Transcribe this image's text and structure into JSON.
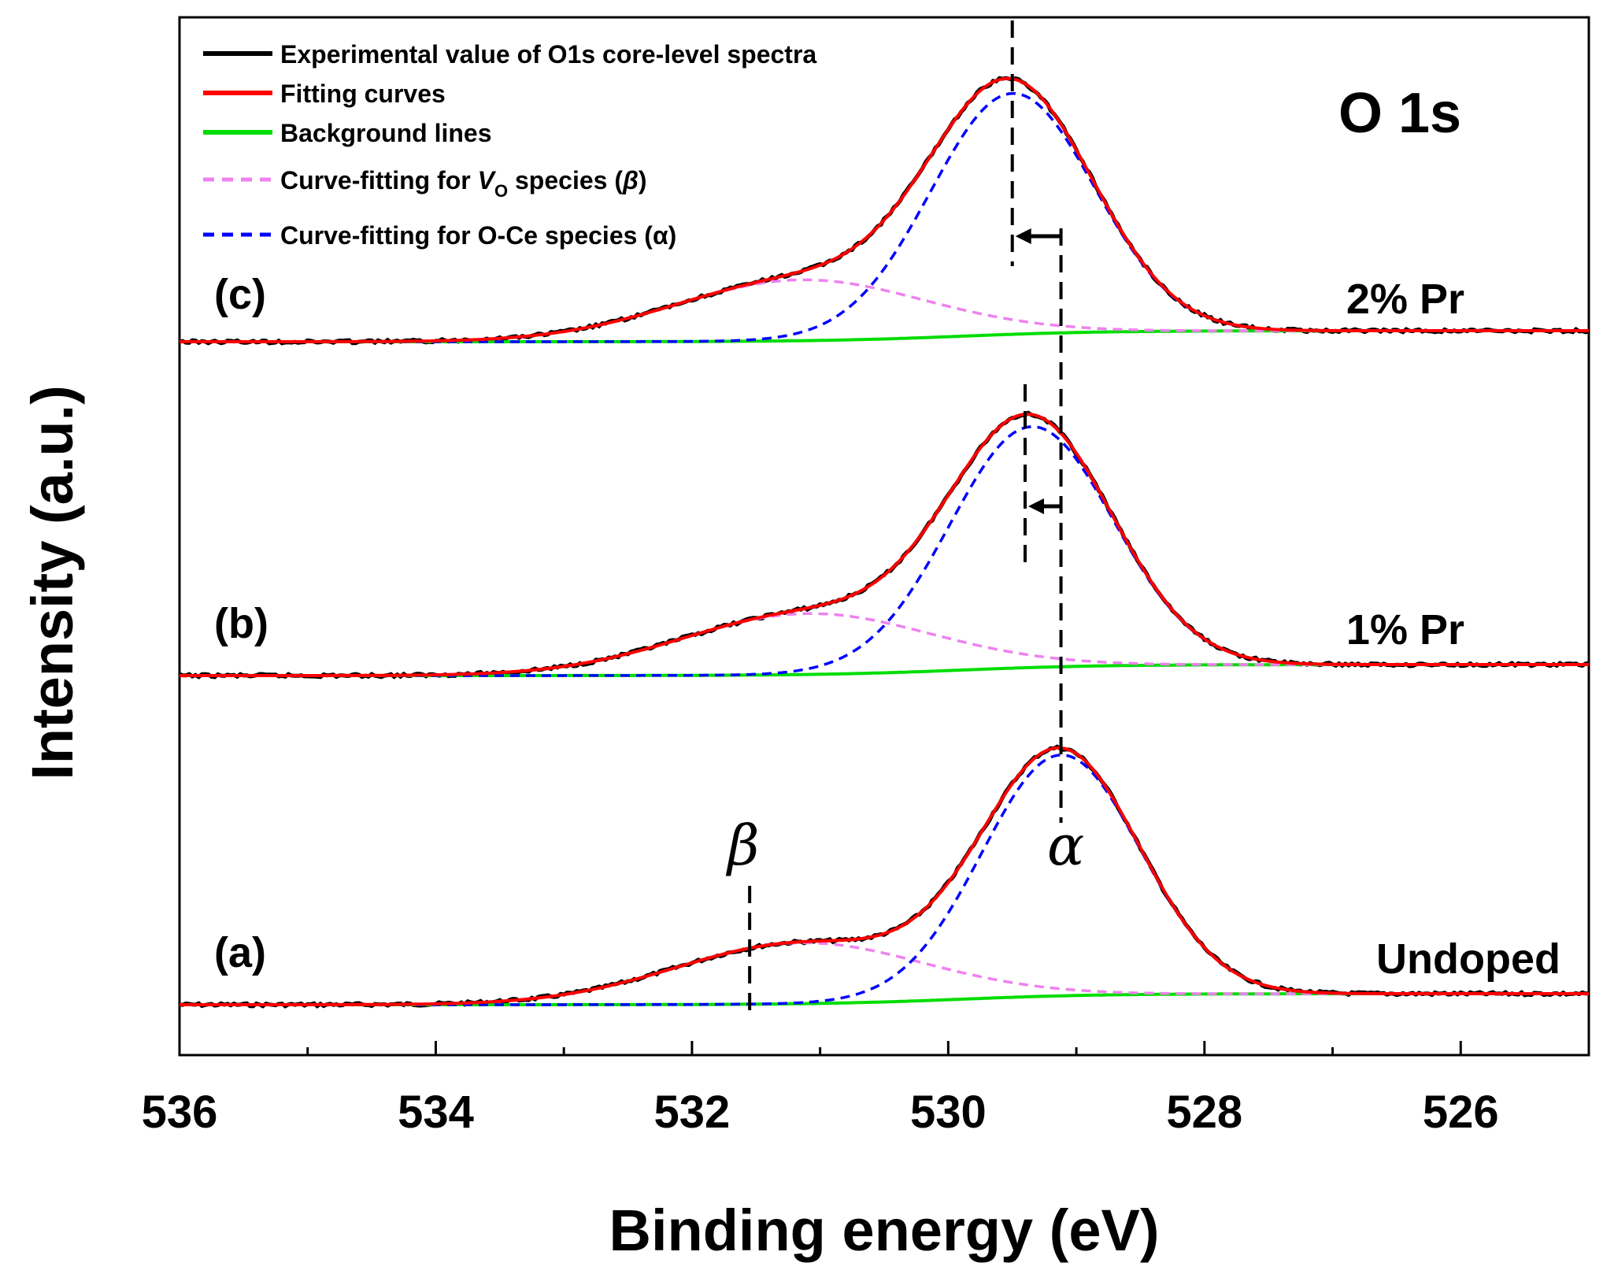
{
  "chart_data": {
    "type": "line",
    "title": "",
    "xlabel": "Binding energy (eV)",
    "ylabel": "Intensity (a.u.)",
    "xlim": [
      536,
      525
    ],
    "xticks": [
      536,
      534,
      532,
      530,
      528,
      526
    ],
    "x_minor_ticks": [
      535,
      533,
      531,
      529,
      527,
      525
    ],
    "core_label": "O 1s",
    "legend": [
      {
        "label": "Experimental value of O1s core-level spectra",
        "color": "#000000",
        "style": "solid"
      },
      {
        "label": "Fitting curves",
        "color": "#ff0000",
        "style": "solid"
      },
      {
        "label": "Background lines",
        "color": "#00dd00",
        "style": "solid"
      },
      {
        "label_prefix": "Curve-fitting for ",
        "label_var": "V",
        "label_sub": "O",
        "label_suffix": " species (",
        "label_greek": "β",
        "label_end": ")",
        "color": "#ee82ee",
        "style": "dashed"
      },
      {
        "label": "Curve-fitting for O-Ce species (α)",
        "color": "#0000ff",
        "style": "dashed"
      }
    ],
    "series": [
      {
        "panel": "(a)",
        "name": "Undoped",
        "alpha_peak_eV": 529.12,
        "alpha_height": 1.0,
        "alpha_fwhm_eV": 1.45,
        "beta_peak_eV": 531.15,
        "beta_height": 0.24,
        "beta_fwhm_eV": 2.3,
        "background_drop": 0.04
      },
      {
        "panel": "(b)",
        "name": "1% Pr",
        "alpha_peak_eV": 529.35,
        "alpha_height": 1.0,
        "alpha_fwhm_eV": 1.5,
        "beta_peak_eV": 531.1,
        "beta_height": 0.24,
        "beta_fwhm_eV": 2.3,
        "background_drop": 0.04
      },
      {
        "panel": "(c)",
        "name": "2% Pr",
        "alpha_peak_eV": 529.5,
        "alpha_height": 1.0,
        "alpha_fwhm_eV": 1.5,
        "beta_peak_eV": 531.15,
        "beta_height": 0.24,
        "beta_fwhm_eV": 2.3,
        "background_drop": 0.04
      }
    ],
    "annotations": {
      "beta_label": "β",
      "alpha_label": "α",
      "beta_marker_eV": 531.55,
      "alpha_marker_eV": 529.12,
      "panel_b_marker_eV": 529.4,
      "panel_c_marker_eV": 529.5
    }
  }
}
